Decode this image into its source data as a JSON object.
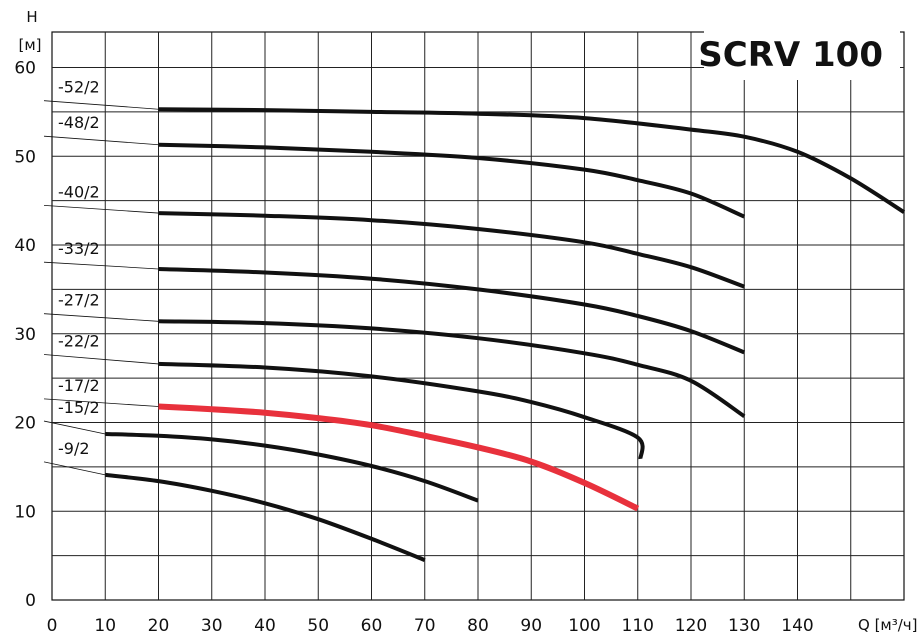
{
  "chart_data": {
    "type": "line",
    "title": "SCRV 100",
    "ylabel_top": "H",
    "ylabel_unit": "[м]",
    "xlabel": "Q [м³/ч]",
    "xlim": [
      0,
      160
    ],
    "ylim": [
      0,
      64
    ],
    "x_ticks": [
      "0",
      "10",
      "20",
      "30",
      "40",
      "50",
      "60",
      "70",
      "80",
      "90",
      "100",
      "110",
      "120",
      "130",
      "140"
    ],
    "x_tick_values": [
      0,
      10,
      20,
      30,
      40,
      50,
      60,
      70,
      80,
      90,
      100,
      110,
      120,
      130,
      140
    ],
    "y_ticks": [
      "0",
      "10",
      "20",
      "30",
      "40",
      "50",
      "60"
    ],
    "y_tick_values": [
      0,
      10,
      20,
      30,
      40,
      50,
      60
    ],
    "grid": true,
    "highlight_color": "#e8313c",
    "line_color": "#111111",
    "series": [
      {
        "name": "-52/2",
        "label_y": 56.6,
        "highlight": false,
        "points": [
          [
            20,
            55.3
          ],
          [
            40,
            55.2
          ],
          [
            60,
            55.0
          ],
          [
            80,
            54.8
          ],
          [
            100,
            54.3
          ],
          [
            120,
            53.0
          ],
          [
            130,
            52.2
          ],
          [
            140,
            50.5
          ],
          [
            150,
            47.5
          ],
          [
            160,
            43.7
          ]
        ]
      },
      {
        "name": "-48/2",
        "label_y": 52.6,
        "highlight": false,
        "points": [
          [
            20,
            51.3
          ],
          [
            40,
            51.0
          ],
          [
            60,
            50.5
          ],
          [
            80,
            49.8
          ],
          [
            100,
            48.5
          ],
          [
            110,
            47.3
          ],
          [
            120,
            45.8
          ],
          [
            130,
            43.2
          ]
        ]
      },
      {
        "name": "-40/2",
        "label_y": 44.8,
        "highlight": false,
        "points": [
          [
            20,
            43.6
          ],
          [
            40,
            43.3
          ],
          [
            60,
            42.8
          ],
          [
            80,
            41.8
          ],
          [
            100,
            40.3
          ],
          [
            110,
            39.0
          ],
          [
            120,
            37.5
          ],
          [
            130,
            35.3
          ]
        ]
      },
      {
        "name": "-33/2",
        "label_y": 38.4,
        "highlight": false,
        "points": [
          [
            20,
            37.3
          ],
          [
            40,
            36.9
          ],
          [
            60,
            36.2
          ],
          [
            80,
            35.0
          ],
          [
            100,
            33.3
          ],
          [
            110,
            32.0
          ],
          [
            120,
            30.3
          ],
          [
            130,
            27.9
          ]
        ]
      },
      {
        "name": "-27/2",
        "label_y": 32.6,
        "highlight": false,
        "points": [
          [
            20,
            31.4
          ],
          [
            40,
            31.2
          ],
          [
            60,
            30.6
          ],
          [
            80,
            29.5
          ],
          [
            100,
            27.8
          ],
          [
            110,
            26.5
          ],
          [
            120,
            24.7
          ],
          [
            130,
            20.7
          ]
        ]
      },
      {
        "name": "-22/2",
        "label_y": 28.0,
        "highlight": false,
        "points": [
          [
            20,
            26.6
          ],
          [
            40,
            26.2
          ],
          [
            60,
            25.2
          ],
          [
            80,
            23.5
          ],
          [
            90,
            22.3
          ],
          [
            100,
            20.6
          ],
          [
            110,
            18.3
          ],
          [
            110.5,
            15.9
          ]
        ]
      },
      {
        "name": "-17/2",
        "label_y": 23.0,
        "highlight": true,
        "points": [
          [
            20,
            21.8
          ],
          [
            30,
            21.5
          ],
          [
            40,
            21.1
          ],
          [
            50,
            20.5
          ],
          [
            60,
            19.7
          ],
          [
            70,
            18.5
          ],
          [
            80,
            17.2
          ],
          [
            90,
            15.6
          ],
          [
            100,
            13.2
          ],
          [
            110,
            10.3
          ]
        ]
      },
      {
        "name": "-15/2",
        "label_y": 20.5,
        "highlight": false,
        "points": [
          [
            10,
            18.7
          ],
          [
            20,
            18.5
          ],
          [
            30,
            18.1
          ],
          [
            40,
            17.4
          ],
          [
            50,
            16.4
          ],
          [
            60,
            15.1
          ],
          [
            70,
            13.4
          ],
          [
            80,
            11.2
          ]
        ]
      },
      {
        "name": "-9/2",
        "label_y": 15.9,
        "highlight": false,
        "points": [
          [
            10,
            14.1
          ],
          [
            20,
            13.4
          ],
          [
            30,
            12.3
          ],
          [
            40,
            10.9
          ],
          [
            50,
            9.1
          ],
          [
            60,
            6.9
          ],
          [
            70,
            4.5
          ]
        ]
      }
    ]
  }
}
